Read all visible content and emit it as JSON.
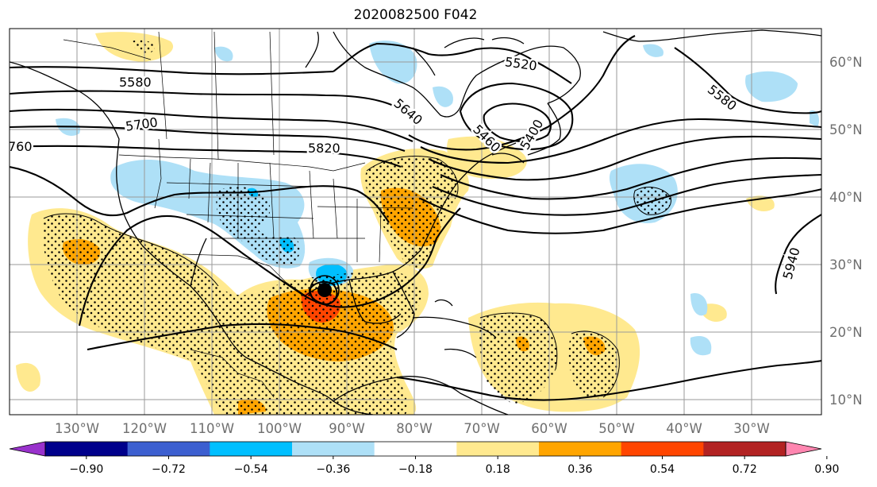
{
  "title": "2020082500 F042",
  "lon_ticks": [
    "130°W",
    "120°W",
    "110°W",
    "100°W",
    "90°W",
    "80°W",
    "70°W",
    "60°W",
    "50°W",
    "40°W",
    "30°W"
  ],
  "lat_ticks": [
    "60°N",
    "50°N",
    "40°N",
    "30°N",
    "20°N",
    "10°N"
  ],
  "contour_labels": [
    "5580",
    "5700",
    "760",
    "5820",
    "5640",
    "5520",
    "5460",
    "5400",
    "5580",
    "5940"
  ],
  "colorbar": {
    "ticks": [
      "−0.90",
      "−0.72",
      "−0.54",
      "−0.36",
      "−0.18",
      "0.18",
      "0.36",
      "0.54",
      "0.72",
      "0.90"
    ],
    "colors": [
      "#9932cc",
      "#00008b",
      "#3c5fd0",
      "#00bfff",
      "#aee0f7",
      "#ffffff",
      "#ffe98f",
      "#ffa500",
      "#ff4500",
      "#b22222",
      "#ff86b0"
    ]
  },
  "colors": {
    "pos_light": "#ffe98f",
    "pos_orange": "#ffa500",
    "pos_red": "#ff4500",
    "neg_light": "#aee0f7",
    "neg_mid": "#00bfff"
  },
  "marker": "storm-center"
}
